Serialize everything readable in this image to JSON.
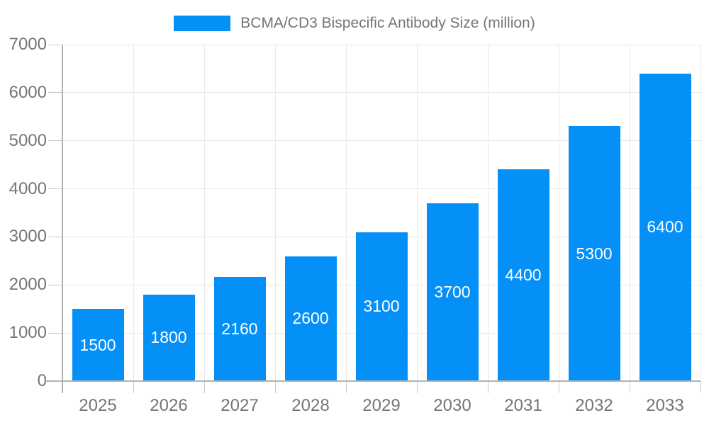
{
  "chart_data": {
    "type": "bar",
    "title": "BCMA/CD3 Bispecific Antibody Size (million)",
    "categories": [
      "2025",
      "2026",
      "2027",
      "2028",
      "2029",
      "2030",
      "2031",
      "2032",
      "2033"
    ],
    "values": [
      1500,
      1800,
      2160,
      2600,
      3100,
      3700,
      4400,
      5300,
      6400
    ],
    "series_name": "BCMA/CD3 Bispecific Antibody Size (million)",
    "xlabel": "",
    "ylabel": "",
    "ylim": [
      0,
      7000
    ],
    "y_ticks": [
      0,
      1000,
      2000,
      3000,
      4000,
      5000,
      6000,
      7000
    ],
    "grid": true,
    "legend_position": "top-center",
    "bar_labels_inside": true,
    "colors": {
      "bar": "#0590f8",
      "bar_label": "#ffffff",
      "axis_text": "#757575",
      "grid": "#e8e8e8",
      "axis_line": "#b2b2b2",
      "tick": "#c9c9c9",
      "background": "#ffffff"
    }
  }
}
